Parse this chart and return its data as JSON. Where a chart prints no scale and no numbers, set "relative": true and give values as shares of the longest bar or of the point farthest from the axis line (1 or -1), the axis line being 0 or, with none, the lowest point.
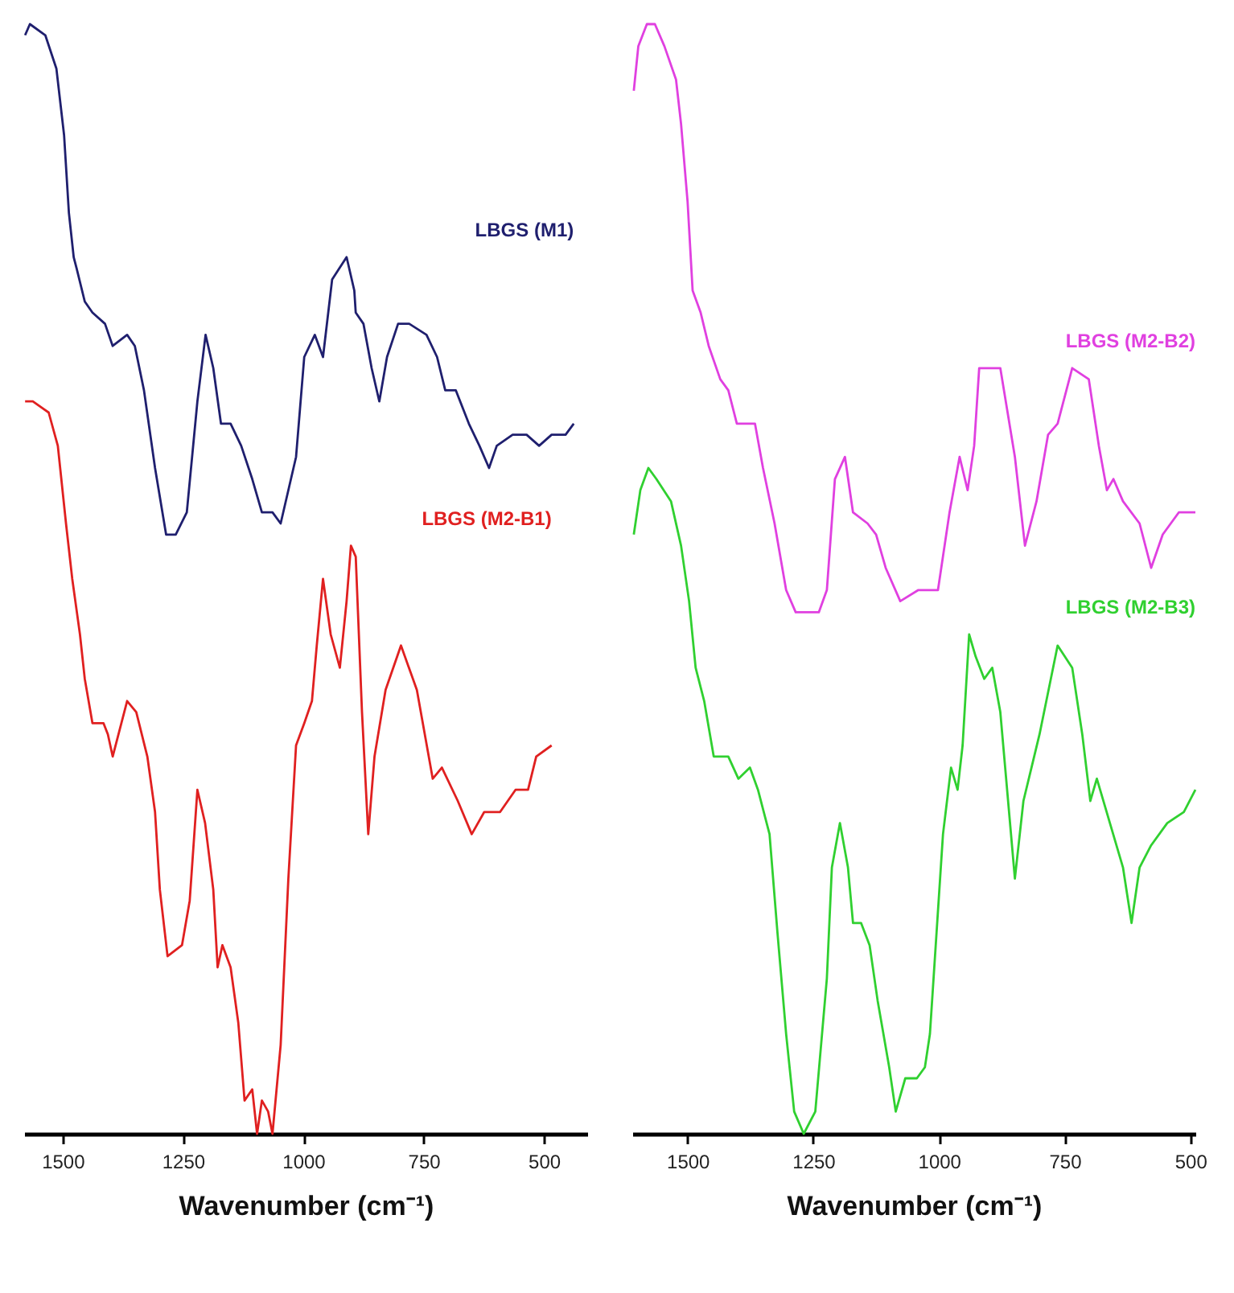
{
  "chart_data": [
    {
      "type": "line",
      "relative": true,
      "xlabel": "Wavenumber (cm⁻¹)",
      "xlim": [
        1580,
        410
      ],
      "xticks": [
        1500,
        1250,
        1000,
        750,
        500
      ],
      "series": [
        {
          "name": "LBGS (M1)",
          "color": "#1f1f6e",
          "x": [
            1578,
            1568,
            1536,
            1513,
            1497,
            1487,
            1477,
            1471,
            1454,
            1438,
            1412,
            1396,
            1366,
            1350,
            1331,
            1308,
            1285,
            1265,
            1242,
            1220,
            1203,
            1187,
            1171,
            1151,
            1129,
            1106,
            1086,
            1064,
            1047,
            1015,
            998,
            976,
            959,
            940,
            910,
            894,
            891,
            875,
            858,
            842,
            826,
            803,
            780,
            744,
            722,
            705,
            683,
            656,
            634,
            614,
            598,
            565,
            536,
            510,
            484,
            455,
            438
          ],
          "values": [
            0.99,
            1.0,
            0.99,
            0.96,
            0.9,
            0.83,
            0.79,
            0.78,
            0.75,
            0.74,
            0.73,
            0.71,
            0.72,
            0.71,
            0.67,
            0.6,
            0.54,
            0.54,
            0.56,
            0.66,
            0.72,
            0.69,
            0.64,
            0.64,
            0.62,
            0.59,
            0.56,
            0.56,
            0.55,
            0.61,
            0.7,
            0.72,
            0.7,
            0.77,
            0.79,
            0.76,
            0.74,
            0.73,
            0.69,
            0.66,
            0.7,
            0.73,
            0.73,
            0.72,
            0.7,
            0.67,
            0.67,
            0.64,
            0.62,
            0.6,
            0.62,
            0.63,
            0.63,
            0.62,
            0.63,
            0.63,
            0.64
          ]
        },
        {
          "name": "LBGS (M2-B1)",
          "color": "#e02020",
          "x": [
            1578,
            1562,
            1529,
            1510,
            1493,
            1480,
            1464,
            1454,
            1438,
            1415,
            1406,
            1396,
            1366,
            1347,
            1324,
            1308,
            1298,
            1282,
            1252,
            1236,
            1220,
            1204,
            1187,
            1178,
            1168,
            1151,
            1135,
            1122,
            1106,
            1096,
            1086,
            1073,
            1064,
            1047,
            1031,
            1015,
            998,
            982,
            972,
            959,
            943,
            924,
            910,
            901,
            891,
            878,
            865,
            852,
            829,
            797,
            764,
            731,
            712,
            679,
            650,
            624,
            591,
            559,
            533,
            516,
            484
          ],
          "values": [
            0.66,
            0.66,
            0.65,
            0.62,
            0.55,
            0.5,
            0.45,
            0.41,
            0.37,
            0.37,
            0.36,
            0.34,
            0.39,
            0.38,
            0.34,
            0.29,
            0.22,
            0.16,
            0.17,
            0.21,
            0.31,
            0.28,
            0.22,
            0.15,
            0.17,
            0.15,
            0.1,
            0.03,
            0.04,
            0.0,
            0.03,
            0.02,
            0.0,
            0.08,
            0.23,
            0.35,
            0.37,
            0.39,
            0.44,
            0.5,
            0.45,
            0.42,
            0.48,
            0.53,
            0.52,
            0.38,
            0.27,
            0.34,
            0.4,
            0.44,
            0.4,
            0.32,
            0.33,
            0.3,
            0.27,
            0.29,
            0.29,
            0.31,
            0.31,
            0.34,
            0.35
          ]
        }
      ]
    },
    {
      "type": "line",
      "relative": true,
      "xlabel": "Wavenumber (cm⁻¹)",
      "xlim": [
        1610,
        490
      ],
      "xticks": [
        1500,
        1250,
        1000,
        750,
        500
      ],
      "series": [
        {
          "name": "LBGS (M2-B2)",
          "color": "#e040e0",
          "x": [
            1607,
            1598,
            1581,
            1565,
            1546,
            1523,
            1513,
            1500,
            1490,
            1474,
            1458,
            1435,
            1419,
            1402,
            1383,
            1366,
            1350,
            1327,
            1304,
            1285,
            1239,
            1223,
            1207,
            1187,
            1171,
            1142,
            1125,
            1106,
            1077,
            1041,
            1002,
            979,
            959,
            943,
            930,
            920,
            904,
            878,
            849,
            829,
            806,
            783,
            764,
            735,
            702,
            682,
            666,
            653,
            634,
            601,
            578,
            555,
            523,
            490
          ],
          "values": [
            0.94,
            0.98,
            1.0,
            1.0,
            0.98,
            0.95,
            0.91,
            0.84,
            0.76,
            0.74,
            0.71,
            0.68,
            0.67,
            0.64,
            0.64,
            0.64,
            0.6,
            0.55,
            0.49,
            0.47,
            0.47,
            0.49,
            0.59,
            0.61,
            0.56,
            0.55,
            0.54,
            0.51,
            0.48,
            0.49,
            0.49,
            0.56,
            0.61,
            0.58,
            0.62,
            0.69,
            0.69,
            0.69,
            0.61,
            0.53,
            0.57,
            0.63,
            0.64,
            0.69,
            0.68,
            0.62,
            0.58,
            0.59,
            0.57,
            0.55,
            0.51,
            0.54,
            0.56,
            0.56
          ]
        },
        {
          "name": "LBGS (M2-B3)",
          "color": "#30d030",
          "x": [
            1607,
            1594,
            1578,
            1562,
            1533,
            1513,
            1497,
            1484,
            1467,
            1448,
            1419,
            1399,
            1376,
            1360,
            1337,
            1321,
            1304,
            1288,
            1269,
            1246,
            1223,
            1213,
            1197,
            1181,
            1171,
            1155,
            1138,
            1122,
            1099,
            1086,
            1067,
            1044,
            1028,
            1018,
            992,
            976,
            963,
            953,
            940,
            927,
            910,
            894,
            878,
            849,
            832,
            816,
            800,
            764,
            735,
            715,
            699,
            686,
            660,
            634,
            617,
            601,
            578,
            546,
            513,
            490
          ],
          "values": [
            0.54,
            0.58,
            0.6,
            0.59,
            0.57,
            0.53,
            0.48,
            0.42,
            0.39,
            0.34,
            0.34,
            0.32,
            0.33,
            0.31,
            0.27,
            0.18,
            0.09,
            0.02,
            0.0,
            0.02,
            0.14,
            0.24,
            0.28,
            0.24,
            0.19,
            0.19,
            0.17,
            0.12,
            0.06,
            0.02,
            0.05,
            0.05,
            0.06,
            0.09,
            0.27,
            0.33,
            0.31,
            0.35,
            0.45,
            0.43,
            0.41,
            0.42,
            0.38,
            0.23,
            0.3,
            0.33,
            0.36,
            0.44,
            0.42,
            0.36,
            0.3,
            0.32,
            0.28,
            0.24,
            0.19,
            0.24,
            0.26,
            0.28,
            0.29,
            0.31
          ]
        }
      ]
    }
  ]
}
